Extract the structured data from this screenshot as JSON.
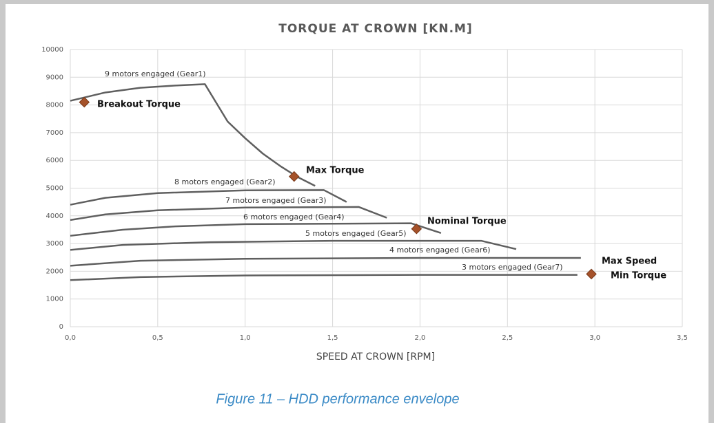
{
  "chart_data": {
    "type": "line",
    "title": "TORQUE AT CROWN [KN.M]",
    "x_label": "SPEED AT CROWN [RPM]",
    "caption": "Figure 11 – HDD performance envelope",
    "xlim": [
      0,
      3.5
    ],
    "xticks": [
      {
        "value": 0,
        "label": "0,0"
      },
      {
        "value": 0.5,
        "label": "0,5"
      },
      {
        "value": 1,
        "label": "1,0"
      },
      {
        "value": 1.5,
        "label": "1,5"
      },
      {
        "value": 2,
        "label": "2,0"
      },
      {
        "value": 2.5,
        "label": "2,5"
      },
      {
        "value": 3,
        "label": "3,0"
      },
      {
        "value": 3.5,
        "label": "3,5"
      }
    ],
    "ylim": [
      0,
      10000
    ],
    "yticks": [
      0,
      1000,
      2000,
      3000,
      4000,
      5000,
      6000,
      7000,
      8000,
      9000,
      10000
    ],
    "grid": true,
    "series": [
      {
        "name": "9 motors engaged (Gear1)",
        "color": "#5f5f5f",
        "x": [
          0,
          0.2,
          0.4,
          0.6,
          0.77,
          0.9,
          1.0,
          1.1,
          1.2,
          1.3,
          1.4
        ],
        "values": [
          8150,
          8450,
          8620,
          8700,
          8750,
          7400,
          6800,
          6250,
          5800,
          5400,
          5080
        ]
      },
      {
        "name": "8 motors engaged (Gear2)",
        "color": "#5f5f5f",
        "x": [
          0,
          0.2,
          0.5,
          1.0,
          1.45,
          1.58
        ],
        "values": [
          4400,
          4650,
          4820,
          4920,
          4930,
          4500
        ]
      },
      {
        "name": "7 motors engaged (Gear3)",
        "color": "#5f5f5f",
        "x": [
          0,
          0.2,
          0.5,
          1.0,
          1.65,
          1.81
        ],
        "values": [
          3850,
          4050,
          4200,
          4300,
          4320,
          3930
        ]
      },
      {
        "name": "6 motors engaged (Gear4)",
        "color": "#5f5f5f",
        "x": [
          0,
          0.3,
          0.6,
          1.0,
          1.95,
          2.12
        ],
        "values": [
          3280,
          3500,
          3620,
          3700,
          3730,
          3380
        ]
      },
      {
        "name": "5 motors engaged (Gear5)",
        "color": "#5f5f5f",
        "x": [
          0,
          0.3,
          0.8,
          1.5,
          2.35,
          2.55
        ],
        "values": [
          2770,
          2950,
          3050,
          3100,
          3100,
          2800
        ]
      },
      {
        "name": "4 motors engaged (Gear6)",
        "color": "#5f5f5f",
        "x": [
          0,
          0.4,
          1.0,
          2.0,
          2.92
        ],
        "values": [
          2200,
          2380,
          2450,
          2480,
          2480
        ]
      },
      {
        "name": "3 motors engaged (Gear7)",
        "color": "#5f5f5f",
        "x": [
          0,
          0.4,
          1.0,
          2.0,
          2.9
        ],
        "values": [
          1680,
          1790,
          1850,
          1870,
          1870
        ]
      }
    ],
    "markers": {
      "color": "#a5522a",
      "x": [
        0.08,
        1.28,
        1.98,
        2.98
      ],
      "values": [
        8100,
        5420,
        3530,
        1900
      ]
    },
    "annotations": [
      "Breakout Torque",
      "Max Torque",
      "Nominal Torque",
      "Max Speed",
      "Min Torque"
    ]
  }
}
